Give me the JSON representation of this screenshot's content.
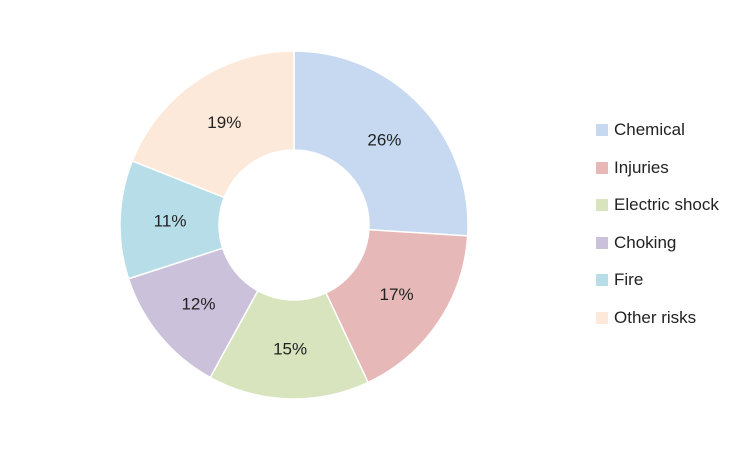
{
  "chart_data": {
    "type": "pie",
    "variant": "donut",
    "title": "",
    "categories": [
      "Chemical",
      "Injuries",
      "Electric shock",
      "Choking",
      "Fire",
      "Other risks"
    ],
    "values": [
      26,
      17,
      15,
      12,
      11,
      19
    ],
    "labels": [
      "26%",
      "17%",
      "15%",
      "12%",
      "11%",
      "19%"
    ],
    "colors": [
      "#c6d9f0",
      "#e6b9b8",
      "#d7e4bd",
      "#ccc1da",
      "#b7dde8",
      "#fde9d9"
    ],
    "legend": {
      "position": "right"
    }
  }
}
